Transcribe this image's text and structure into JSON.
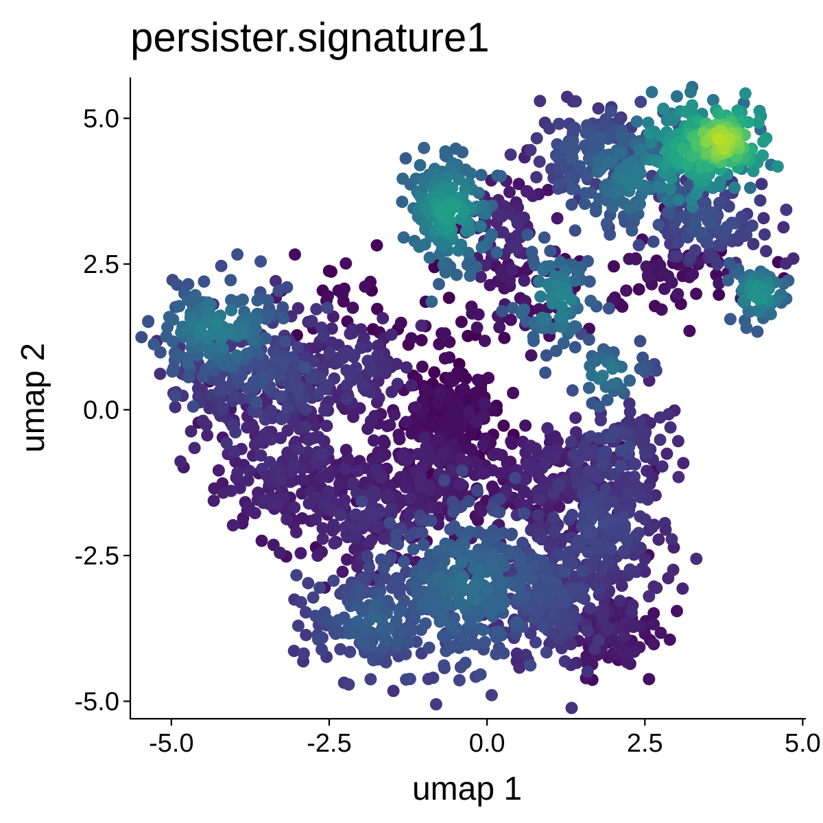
{
  "chart_data": {
    "type": "scatter",
    "title": "persister.signature1",
    "xlabel": "umap 1",
    "ylabel": "umap 2",
    "xlim": [
      -5.65,
      5.05
    ],
    "ylim": [
      -5.3,
      5.7
    ],
    "x_ticks": [
      "-5.0",
      "-2.5",
      "0.0",
      "2.5",
      "5.0"
    ],
    "y_ticks": [
      "-5.0",
      "-2.5",
      "0.0",
      "2.5",
      "5.0"
    ],
    "x_tick_values": [
      -5.0,
      -2.5,
      0.0,
      2.5,
      5.0
    ],
    "y_tick_values": [
      -5.0,
      -2.5,
      0.0,
      2.5,
      5.0
    ],
    "grid": false,
    "legend": "none",
    "colormap": "viridis",
    "point_color_low": "#440154",
    "point_color_high": "#fde725",
    "clusters": [
      {
        "cx": -4.3,
        "cy": 1.4,
        "sx": 0.55,
        "sy": 0.45,
        "n": 160,
        "value": 0.42
      },
      {
        "cx": -3.6,
        "cy": 0.6,
        "sx": 0.7,
        "sy": 0.55,
        "n": 220,
        "value": 0.22
      },
      {
        "cx": -3.2,
        "cy": -0.8,
        "sx": 0.6,
        "sy": 0.7,
        "n": 180,
        "value": 0.12
      },
      {
        "cx": -2.2,
        "cy": 0.7,
        "sx": 0.45,
        "sy": 0.4,
        "n": 110,
        "value": 0.15
      },
      {
        "cx": -2.0,
        "cy": -1.8,
        "sx": 0.6,
        "sy": 0.6,
        "n": 160,
        "value": 0.12
      },
      {
        "cx": -1.8,
        "cy": -3.6,
        "sx": 0.55,
        "sy": 0.45,
        "n": 150,
        "value": 0.3
      },
      {
        "cx": -0.6,
        "cy": -0.1,
        "sx": 0.35,
        "sy": 0.45,
        "n": 190,
        "value": 0.02
      },
      {
        "cx": -0.9,
        "cy": -1.2,
        "sx": 0.7,
        "sy": 0.6,
        "n": 200,
        "value": 0.08
      },
      {
        "cx": -0.3,
        "cy": -3.0,
        "sx": 0.7,
        "sy": 0.7,
        "n": 330,
        "value": 0.35
      },
      {
        "cx": 1.0,
        "cy": -3.1,
        "sx": 0.55,
        "sy": 0.6,
        "n": 200,
        "value": 0.22
      },
      {
        "cx": 1.8,
        "cy": -2.0,
        "sx": 0.55,
        "sy": 0.7,
        "n": 200,
        "value": 0.2
      },
      {
        "cx": 1.0,
        "cy": -1.2,
        "sx": 0.6,
        "sy": 0.5,
        "n": 150,
        "value": 0.1
      },
      {
        "cx": 2.0,
        "cy": -3.8,
        "sx": 0.4,
        "sy": 0.35,
        "n": 90,
        "value": 0.08
      },
      {
        "cx": 2.0,
        "cy": -0.7,
        "sx": 0.45,
        "sy": 0.4,
        "n": 90,
        "value": 0.2
      },
      {
        "cx": -0.6,
        "cy": 3.4,
        "sx": 0.35,
        "sy": 0.45,
        "n": 150,
        "value": 0.55
      },
      {
        "cx": 0.3,
        "cy": 3.1,
        "sx": 0.35,
        "sy": 0.5,
        "n": 70,
        "value": 0.12
      },
      {
        "cx": 0.6,
        "cy": 2.0,
        "sx": 0.45,
        "sy": 0.5,
        "n": 50,
        "value": 0.05
      },
      {
        "cx": 1.1,
        "cy": 1.9,
        "sx": 0.35,
        "sy": 0.45,
        "n": 80,
        "value": 0.45
      },
      {
        "cx": 1.9,
        "cy": 0.6,
        "sx": 0.3,
        "sy": 0.3,
        "n": 35,
        "value": 0.4
      },
      {
        "cx": 1.6,
        "cy": 4.4,
        "sx": 0.45,
        "sy": 0.35,
        "n": 120,
        "value": 0.28
      },
      {
        "cx": 2.3,
        "cy": 4.0,
        "sx": 0.5,
        "sy": 0.5,
        "n": 150,
        "value": 0.4
      },
      {
        "cx": 3.7,
        "cy": 4.6,
        "sx": 0.35,
        "sy": 0.3,
        "n": 150,
        "value": 0.88
      },
      {
        "cx": 3.3,
        "cy": 4.4,
        "sx": 0.45,
        "sy": 0.45,
        "n": 100,
        "value": 0.65
      },
      {
        "cx": 3.5,
        "cy": 3.2,
        "sx": 0.5,
        "sy": 0.35,
        "n": 100,
        "value": 0.25
      },
      {
        "cx": 4.3,
        "cy": 2.0,
        "sx": 0.25,
        "sy": 0.25,
        "n": 70,
        "value": 0.5
      },
      {
        "cx": 2.9,
        "cy": 2.3,
        "sx": 0.6,
        "sy": 0.35,
        "n": 60,
        "value": 0.05
      },
      {
        "cx": -2.4,
        "cy": 1.9,
        "sx": 0.5,
        "sy": 0.35,
        "n": 25,
        "value": 0.02
      },
      {
        "cx": -0.8,
        "cy": 1.5,
        "sx": 0.5,
        "sy": 0.5,
        "n": 20,
        "value": 0.02
      }
    ]
  }
}
